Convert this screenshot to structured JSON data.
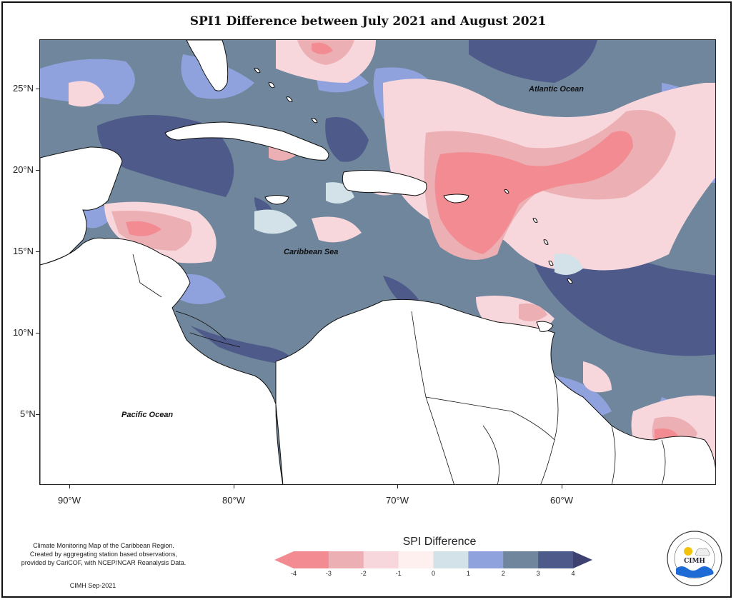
{
  "title": "SPI1 Difference between July 2021 and August 2021",
  "map": {
    "y_axis_labels": [
      "25°N",
      "20°N",
      "15°N",
      "10°N",
      "5°N"
    ],
    "x_axis_labels": [
      "90°W",
      "80°W",
      "70°W",
      "60°W"
    ],
    "ocean_labels": [
      "Atlantic Ocean",
      "Caribbean Sea",
      "Pacific Ocean"
    ]
  },
  "legend": {
    "title": "SPI Difference",
    "tick_labels": [
      "-4",
      "-3",
      "-2",
      "-1",
      "0",
      "1",
      "2",
      "3",
      "4"
    ],
    "colors": [
      "#f38c92",
      "#ecb0b4",
      "#f7d6dc",
      "#fff0f0",
      "#d3e2e8",
      "#8fa2dd",
      "#6f869c",
      "#4e5a8a"
    ]
  },
  "credits": {
    "lines": [
      "Climate Monitoring Map of the Caribbean Region.",
      "Created by aggregating station based observations,",
      "provided by CariCOF, with NCEP/NCAR Reanalysis Data."
    ],
    "signature": "CIMH Sep-2021"
  },
  "logo": {
    "acronym": "CIMH"
  }
}
